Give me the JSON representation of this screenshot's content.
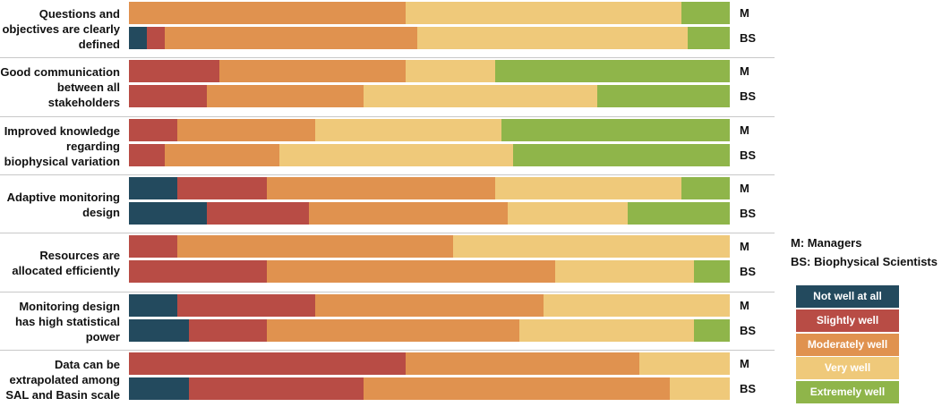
{
  "chart_data": {
    "type": "stacked-bar-horizontal",
    "categories": [
      "Questions and objectives are clearly defined",
      "Good communication between all stakeholders",
      "Improved knowledge regarding biophysical variation",
      "Adaptive monitoring design",
      "Resources are allocated efficiently",
      "Monitoring design has high statistical power",
      "Data can be extrapolated among SAL and Basin scale"
    ],
    "groups": [
      "M",
      "BS"
    ],
    "group_legend": [
      "M: Managers",
      "BS: Biophysical Scientists"
    ],
    "series": [
      {
        "name": "Not well at all",
        "color": "#234a5e",
        "values": [
          [
            0,
            3
          ],
          [
            0,
            0
          ],
          [
            0,
            0
          ],
          [
            8,
            13
          ],
          [
            0,
            0
          ],
          [
            8,
            10
          ],
          [
            0,
            10
          ]
        ]
      },
      {
        "name": "Slightly well",
        "color": "#b84c45",
        "values": [
          [
            0,
            3
          ],
          [
            15,
            13
          ],
          [
            8,
            6
          ],
          [
            15,
            17
          ],
          [
            8,
            23
          ],
          [
            23,
            13
          ],
          [
            46,
            29
          ]
        ]
      },
      {
        "name": "Moderately well",
        "color": "#e0924f",
        "values": [
          [
            46,
            42
          ],
          [
            31,
            26
          ],
          [
            23,
            19
          ],
          [
            38,
            33
          ],
          [
            46,
            48
          ],
          [
            38,
            42
          ],
          [
            39,
            51
          ]
        ]
      },
      {
        "name": "Very well",
        "color": "#efc97a",
        "values": [
          [
            46,
            45
          ],
          [
            15,
            39
          ],
          [
            31,
            39
          ],
          [
            31,
            20
          ],
          [
            46,
            23
          ],
          [
            31,
            29
          ],
          [
            15,
            10
          ]
        ]
      },
      {
        "name": "Extremely well",
        "color": "#8fb54a",
        "values": [
          [
            8,
            7
          ],
          [
            39,
            22
          ],
          [
            38,
            36
          ],
          [
            8,
            17
          ],
          [
            0,
            6
          ],
          [
            0,
            6
          ],
          [
            0,
            0
          ]
        ]
      }
    ]
  }
}
